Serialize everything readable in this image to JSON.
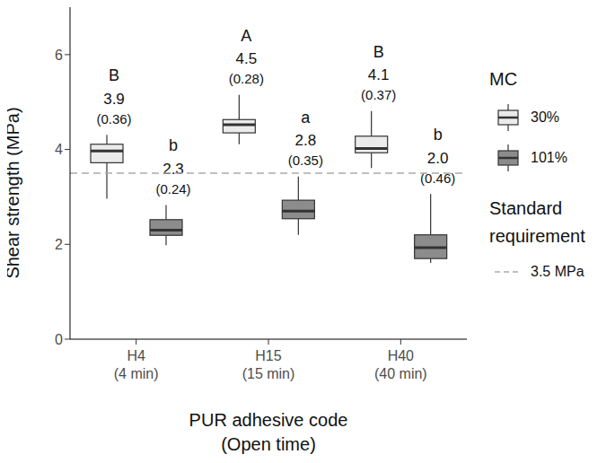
{
  "chart_data": {
    "type": "boxplot",
    "x_label": "PUR adhesive code (Open time)",
    "y_label": "Shear strength (MPa)",
    "categories": [
      "H4 (4 min)",
      "H15 (15 min)",
      "H40 (40 min)"
    ],
    "ylim": [
      0,
      7
    ],
    "yticks": [
      0,
      2,
      4,
      6
    ],
    "grid": false,
    "legend_title": "MC",
    "series": [
      {
        "name": "30%",
        "color": "#ebebeb",
        "min": [
          2.96,
          4.11,
          3.61
        ],
        "q1": [
          3.72,
          4.35,
          3.93
        ],
        "median": [
          3.97,
          4.52,
          4.02
        ],
        "q3": [
          4.11,
          4.63,
          4.28
        ],
        "max": [
          4.31,
          5.15,
          4.81
        ],
        "letters": [
          "B",
          "A",
          "B"
        ],
        "mean_labels": [
          "3.9",
          "4.5",
          "4.1"
        ],
        "sd_labels": [
          "(0.36)",
          "(0.28)",
          "(0.37)"
        ]
      },
      {
        "name": "101%",
        "color": "#8c8c8c",
        "min": [
          1.98,
          2.2,
          1.61
        ],
        "q1": [
          2.19,
          2.54,
          1.7
        ],
        "median": [
          2.3,
          2.7,
          1.93
        ],
        "q3": [
          2.52,
          2.93,
          2.2
        ],
        "max": [
          2.83,
          3.43,
          3.06
        ],
        "letters": [
          "b",
          "a",
          "b"
        ],
        "mean_labels": [
          "2.3",
          "2.8",
          "2.0"
        ],
        "sd_labels": [
          "(0.24)",
          "(0.35)",
          "(0.46)"
        ]
      }
    ],
    "reference_line": {
      "value": 3.5,
      "name": "Standard requirement",
      "label": "3.5 MPa",
      "color": "#aaaaaa",
      "line_style": "dashed"
    }
  }
}
